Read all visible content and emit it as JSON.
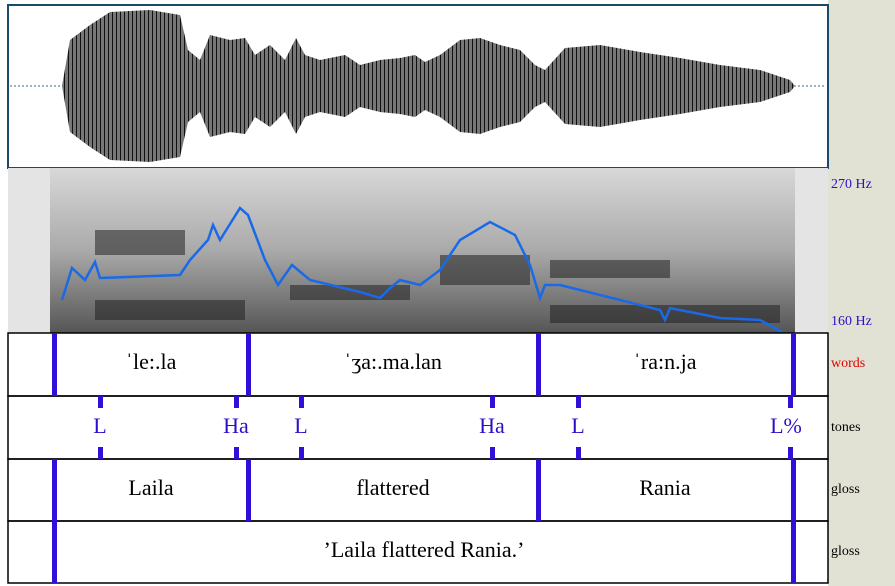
{
  "pitch_axis": {
    "top": "270 Hz",
    "bottom": "160 Hz"
  },
  "tiers": [
    {
      "name": "words",
      "labels": [
        "ˈle:.la",
        "ˈʒa:.ma.lan",
        "ˈra:n.ja"
      ]
    },
    {
      "name": "tones",
      "labels": [
        "L",
        "Ha",
        "L",
        "Ha",
        "L",
        "L%"
      ]
    },
    {
      "name": "gloss",
      "labels": [
        "Laila",
        "flattered",
        "Rania"
      ]
    },
    {
      "name": "gloss",
      "labels": [
        "’Laila flattered Rania.’"
      ]
    }
  ]
}
